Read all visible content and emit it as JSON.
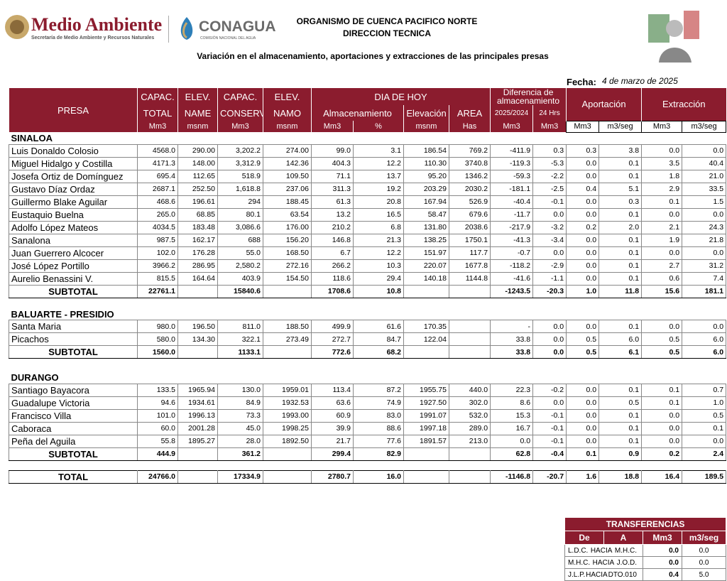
{
  "header": {
    "brand": "Medio Ambiente",
    "brand_sub": "Secretaría de Medio Ambiente y Recursos Naturales",
    "agency": "CONAGUA",
    "agency_sub": "COMISIÓN NACIONAL DEL AGUA",
    "org": "ORGANISMO DE CUENCA PACIFICO NORTE",
    "dept": "DIRECCION TECNICA",
    "title": "Variación en el almacenamiento, aportaciones y extracciones de las principales presas",
    "date_label": "Fecha:",
    "date": "4 de marzo de 2025"
  },
  "table": {
    "head": {
      "row1": [
        "PRESA",
        "CAPAC.",
        "ELEV.",
        "CAPAC.",
        "ELEV.",
        "DIA DE HOY",
        "Diferencia de almacenamiento",
        "Aportación",
        "Extracción"
      ],
      "row2": [
        "TOTAL",
        "NAME",
        "CONSERV.",
        "NAMO",
        "Almacenamiento",
        "Elevación",
        "AREA",
        "2025/2024",
        "24 Hrs"
      ],
      "units": [
        "Mm3",
        "msnm",
        "Mm3",
        "msnm",
        "Mm3",
        "%",
        "msnm",
        "Has",
        "Mm3",
        "Mm3",
        "Mm3",
        "m3/seg",
        "Mm3",
        "m3/seg"
      ]
    },
    "sections": [
      {
        "name": "SINALOA",
        "rows": [
          [
            "Luis Donaldo Colosio",
            "4568.0",
            "290.00",
            "3,202.2",
            "274.00",
            "99.0",
            "3.1",
            "186.54",
            "769.2",
            "-411.9",
            "0.3",
            "0.3",
            "3.8",
            "0.0",
            "0.0"
          ],
          [
            "Miguel Hidalgo y Costilla",
            "4171.3",
            "148.00",
            "3,312.9",
            "142.36",
            "404.3",
            "12.2",
            "110.30",
            "3740.8",
            "-119.3",
            "-5.3",
            "0.0",
            "0.1",
            "3.5",
            "40.4"
          ],
          [
            "Josefa Ortiz de Domínguez",
            "695.4",
            "112.65",
            "518.9",
            "109.50",
            "71.1",
            "13.7",
            "95.20",
            "1346.2",
            "-59.3",
            "-2.2",
            "0.0",
            "0.1",
            "1.8",
            "21.0"
          ],
          [
            "Gustavo Díaz Ordaz",
            "2687.1",
            "252.50",
            "1,618.8",
            "237.06",
            "311.3",
            "19.2",
            "203.29",
            "2030.2",
            "-181.1",
            "-2.5",
            "0.4",
            "5.1",
            "2.9",
            "33.5"
          ],
          [
            "Guillermo Blake Aguilar",
            "468.6",
            "196.61",
            "294",
            "188.45",
            "61.3",
            "20.8",
            "167.94",
            "526.9",
            "-40.4",
            "-0.1",
            "0.0",
            "0.3",
            "0.1",
            "1.5"
          ],
          [
            "Eustaquio Buelna",
            "265.0",
            "68.85",
            "80.1",
            "63.54",
            "13.2",
            "16.5",
            "58.47",
            "679.6",
            "-11.7",
            "0.0",
            "0.0",
            "0.1",
            "0.0",
            "0.0"
          ],
          [
            "Adolfo López Mateos",
            "4034.5",
            "183.48",
            "3,086.6",
            "176.00",
            "210.2",
            "6.8",
            "131.80",
            "2038.6",
            "-217.9",
            "-3.2",
            "0.2",
            "2.0",
            "2.1",
            "24.3"
          ],
          [
            "Sanalona",
            "987.5",
            "162.17",
            "688",
            "156.20",
            "146.8",
            "21.3",
            "138.25",
            "1750.1",
            "-41.3",
            "-3.4",
            "0.0",
            "0.1",
            "1.9",
            "21.8"
          ],
          [
            "Juan Guerrero Alcocer",
            "102.0",
            "176.28",
            "55.0",
            "168.50",
            "6.7",
            "12.2",
            "151.97",
            "117.7",
            "-0.7",
            "0.0",
            "0.0",
            "0.1",
            "0.0",
            "0.0"
          ],
          [
            "José López Portillo",
            "3966.2",
            "286.95",
            "2,580.2",
            "272.16",
            "266.2",
            "10.3",
            "220.07",
            "1677.8",
            "-118.2",
            "-2.9",
            "0.0",
            "0.1",
            "2.7",
            "31.2"
          ],
          [
            "Aurelio Benassini V.",
            "815.5",
            "164.64",
            "403.9",
            "154.50",
            "118.6",
            "29.4",
            "140.18",
            "1144.8",
            "-41.6",
            "-1.1",
            "0.0",
            "0.1",
            "0.6",
            "7.4"
          ]
        ],
        "subtotal": [
          "SUBTOTAL",
          "22761.1",
          null,
          "15840.6",
          null,
          "1708.6",
          "10.8",
          null,
          null,
          "-1243.5",
          "-20.3",
          "1.0",
          "11.8",
          "15.6",
          "181.1"
        ]
      },
      {
        "name": "BALUARTE - PRESIDIO",
        "rows": [
          [
            "Santa Maria",
            "980.0",
            "196.50",
            "811.0",
            "188.50",
            "499.9",
            "61.6",
            "170.35",
            null,
            "-",
            "0.0",
            "0.0",
            "0.1",
            "0.0",
            "0.0"
          ],
          [
            "Picachos",
            "580.0",
            "134.30",
            "322.1",
            "273.49",
            "272.7",
            "84.7",
            "122.04",
            null,
            "33.8",
            "0.0",
            "0.5",
            "6.0",
            "0.5",
            "6.0"
          ]
        ],
        "subtotal": [
          "SUBTOTAL",
          "1560.0",
          null,
          "1133.1",
          null,
          "772.6",
          "68.2",
          null,
          null,
          "33.8",
          "0.0",
          "0.5",
          "6.1",
          "0.5",
          "6.0"
        ]
      },
      {
        "name": "DURANGO",
        "rows": [
          [
            "Santiago Bayacora",
            "133.5",
            "1965.94",
            "130.0",
            "1959.01",
            "113.4",
            "87.2",
            "1955.75",
            "440.0",
            "22.3",
            "-0.2",
            "0.0",
            "0.1",
            "0.1",
            "0.7"
          ],
          [
            "Guadalupe Victoria",
            "94.6",
            "1934.61",
            "84.9",
            "1932.53",
            "63.6",
            "74.9",
            "1927.50",
            "302.0",
            "8.6",
            "0.0",
            "0.0",
            "0.5",
            "0.1",
            "1.0"
          ],
          [
            "Francisco Villa",
            "101.0",
            "1996.13",
            "73.3",
            "1993.00",
            "60.9",
            "83.0",
            "1991.07",
            "532.0",
            "15.3",
            "-0.1",
            "0.0",
            "0.1",
            "0.0",
            "0.5"
          ],
          [
            "Caboraca",
            "60.0",
            "2001.28",
            "45.0",
            "1998.25",
            "39.9",
            "88.6",
            "1997.18",
            "289.0",
            "16.7",
            "-0.1",
            "0.0",
            "0.1",
            "0.0",
            "0.1"
          ],
          [
            "Peña del Aguila",
            "55.8",
            "1895.27",
            "28.0",
            "1892.50",
            "21.7",
            "77.6",
            "1891.57",
            "213.0",
            "0.0",
            "-0.1",
            "0.0",
            "0.1",
            "0.0",
            "0.0"
          ]
        ],
        "subtotal": [
          "SUBTOTAL",
          "444.9",
          null,
          "361.2",
          null,
          "299.4",
          "82.9",
          null,
          null,
          "62.8",
          "-0.4",
          "0.1",
          "0.9",
          "0.2",
          "2.4"
        ]
      }
    ],
    "total": [
      "TOTAL",
      "24766.0",
      null,
      "17334.9",
      null,
      "2780.7",
      "16.0",
      null,
      null,
      "-1146.8",
      "-20.7",
      "1.6",
      "18.8",
      "16.4",
      "189.5"
    ]
  },
  "transfers": {
    "title": "TRANSFERENCIAS",
    "head": [
      "De",
      "A",
      "Mm3",
      "m3/seg"
    ],
    "rows": [
      [
        "L.D.C.",
        "HACIA",
        "M.H.C.",
        "0.0",
        "0.0"
      ],
      [
        "M.H.C.",
        "HACIA",
        "J.O.D.",
        "0.0",
        "0.0"
      ],
      [
        "J.L.P.",
        "HACIA",
        "DTO.010",
        "0.4",
        "5.0"
      ]
    ]
  }
}
